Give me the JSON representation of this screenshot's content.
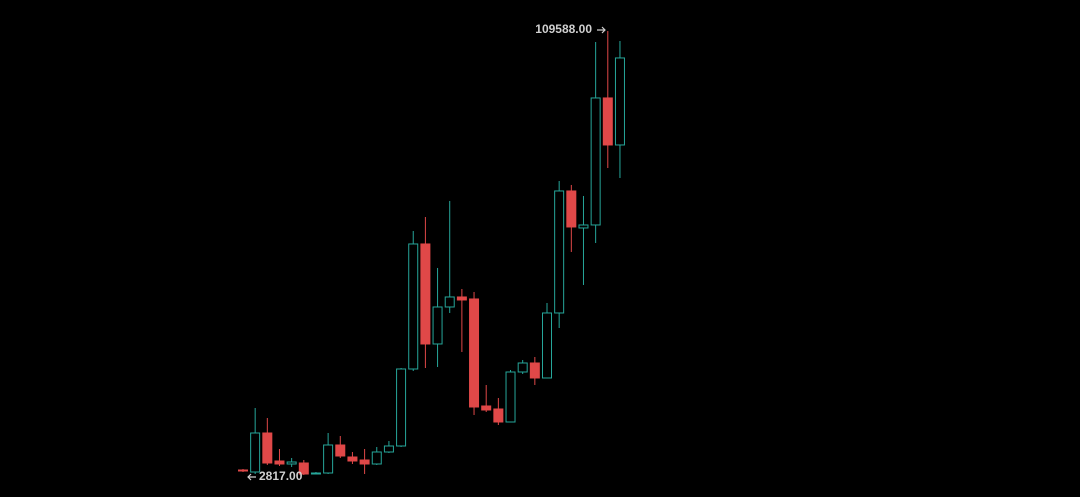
{
  "chart_data": {
    "type": "candlestick",
    "up_color": "#26a69a",
    "down_color": "#e04848",
    "series": [
      {
        "open": [
          4020,
          3539,
          12918,
          6184,
          5463,
          5703,
          3058,
          3298,
          10032,
          7146,
          6425,
          5463,
          8349,
          9792,
          28310,
          58373,
          34323,
          43221,
          45626,
          45145,
          19412,
          18690,
          15564,
          27588,
          29753,
          26146,
          41778,
          71119,
          62221,
          62942,
          93486,
          82182
        ],
        "high": [
          4260,
          18931,
          16526,
          9070,
          6906,
          6425,
          3539,
          12918,
          12197,
          8349,
          9070,
          9551,
          10994,
          28551,
          61499,
          64866,
          52601,
          68714,
          47550,
          46829,
          24462,
          21336,
          28070,
          30475,
          31197,
          44183,
          73524,
          72562,
          69917,
          106954,
          109588,
          107195
        ],
        "low": [
          3539,
          3058,
          5222,
          4982,
          4741,
          2817,
          3058,
          3058,
          6906,
          5463,
          3058,
          5222,
          8108,
          9551,
          27829,
          28551,
          28791,
          41778,
          32399,
          17247,
          17969,
          14842,
          15564,
          27108,
          24462,
          26146,
          38171,
          56449,
          48512,
          58613,
          76651,
          74246
        ],
        "close": [
          3779,
          12918,
          5703,
          5463,
          5944,
          3058,
          3298,
          10032,
          7387,
          6184,
          5463,
          8349,
          9792,
          28310,
          58373,
          34323,
          43221,
          45626,
          44905,
          19171,
          18450,
          15564,
          27588,
          29753,
          26146,
          41778,
          71119,
          62461,
          62942,
          93486,
          82182,
          103106
        ]
      }
    ],
    "annotations": [
      {
        "value": 109588,
        "label": "109588.00"
      },
      {
        "value": 2817,
        "label": "2817.00"
      }
    ]
  }
}
